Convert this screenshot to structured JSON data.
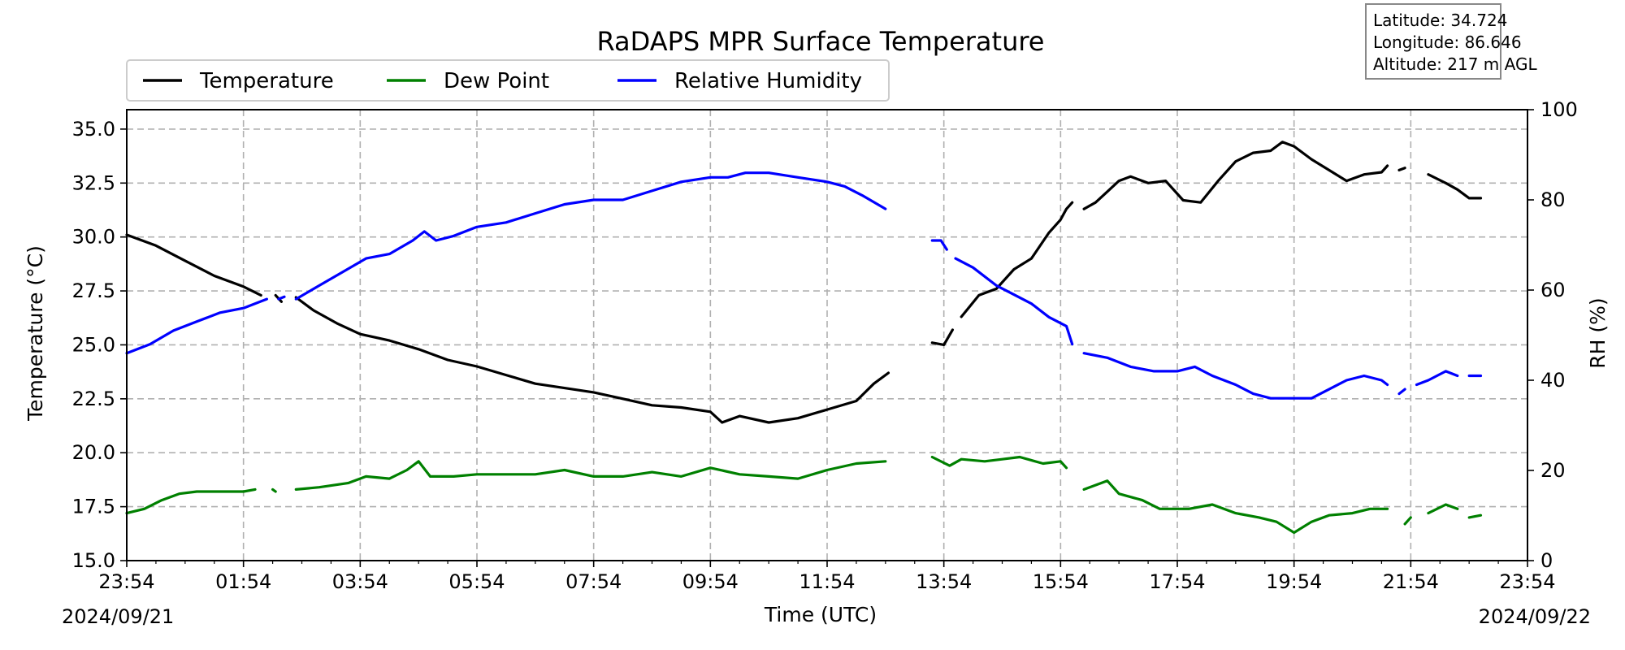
{
  "info": {
    "latitude": "Latitude: 34.724",
    "longitude": "Longitude: 86.646",
    "altitude": "Altitude: 217 m AGL"
  },
  "chart_data": {
    "type": "line",
    "title": "RaDAPS MPR Surface Temperature",
    "xlabel": "Time (UTC)",
    "ylabel": "Temperature (°C)",
    "y2label": "RH (%)",
    "date_start": "2024/09/21",
    "date_end": "2024/09/22",
    "xticks": [
      "23:54",
      "01:54",
      "03:54",
      "05:54",
      "07:54",
      "09:54",
      "11:54",
      "13:54",
      "15:54",
      "17:54",
      "19:54",
      "21:54",
      "23:54"
    ],
    "xlim_hours": [
      0,
      24
    ],
    "ylim": [
      15,
      35.9
    ],
    "yticks": [
      "15.0",
      "17.5",
      "20.0",
      "22.5",
      "25.0",
      "27.5",
      "30.0",
      "32.5",
      "35.0"
    ],
    "y2lim": [
      0,
      100
    ],
    "y2ticks": [
      "0",
      "20",
      "40",
      "60",
      "80",
      "100"
    ],
    "grid": true,
    "legend_position": "top-left",
    "series": [
      {
        "name": "Temperature",
        "axis": "left",
        "color": "#000000",
        "points": [
          [
            0,
            30.1
          ],
          [
            0.5,
            29.6
          ],
          [
            1,
            28.9
          ],
          [
            1.5,
            28.2
          ],
          [
            2,
            27.7
          ],
          [
            2.3,
            27.3
          ],
          null,
          [
            2.55,
            27.3
          ],
          [
            2.65,
            27.0
          ],
          null,
          [
            2.9,
            27.2
          ],
          [
            3.2,
            26.6
          ],
          [
            3.6,
            26.0
          ],
          [
            4,
            25.5
          ],
          [
            4.5,
            25.2
          ],
          [
            5,
            24.8
          ],
          [
            5.5,
            24.3
          ],
          [
            6,
            24.0
          ],
          [
            6.5,
            23.6
          ],
          [
            7,
            23.2
          ],
          [
            7.5,
            23.0
          ],
          [
            8,
            22.8
          ],
          [
            8.5,
            22.5
          ],
          [
            9,
            22.2
          ],
          [
            9.5,
            22.1
          ],
          [
            10,
            21.9
          ],
          [
            10.2,
            21.4
          ],
          [
            10.5,
            21.7
          ],
          [
            11,
            21.4
          ],
          [
            11.5,
            21.6
          ],
          [
            12,
            22.0
          ],
          [
            12.5,
            22.4
          ],
          [
            12.8,
            23.2
          ],
          [
            13.05,
            23.7
          ],
          null,
          [
            13.8,
            25.1
          ],
          [
            14.0,
            25.0
          ],
          [
            14.15,
            25.7
          ],
          null,
          [
            14.3,
            26.3
          ],
          [
            14.6,
            27.3
          ],
          [
            14.9,
            27.6
          ],
          [
            15.2,
            28.5
          ],
          [
            15.5,
            29.0
          ],
          [
            15.8,
            30.2
          ],
          [
            16.0,
            30.8
          ],
          [
            16.1,
            31.3
          ],
          [
            16.2,
            31.6
          ],
          null,
          [
            16.4,
            31.3
          ],
          [
            16.6,
            31.6
          ],
          [
            16.8,
            32.1
          ],
          [
            17,
            32.6
          ],
          [
            17.2,
            32.8
          ],
          [
            17.5,
            32.5
          ],
          [
            17.8,
            32.6
          ],
          [
            18.1,
            31.7
          ],
          [
            18.4,
            31.6
          ],
          [
            18.7,
            32.6
          ],
          [
            19,
            33.5
          ],
          [
            19.3,
            33.9
          ],
          [
            19.6,
            34.0
          ],
          [
            19.8,
            34.4
          ],
          [
            20,
            34.2
          ],
          [
            20.3,
            33.6
          ],
          [
            20.6,
            33.1
          ],
          [
            20.9,
            32.6
          ],
          [
            21.2,
            32.9
          ],
          [
            21.5,
            33.0
          ],
          [
            21.6,
            33.3
          ],
          null,
          [
            21.8,
            33.1
          ],
          [
            21.9,
            33.2
          ],
          null,
          [
            22.3,
            32.9
          ],
          [
            22.6,
            32.5
          ],
          [
            22.8,
            32.2
          ],
          [
            23.0,
            31.8
          ],
          [
            23.2,
            31.8
          ]
        ]
      },
      {
        "name": "Dew Point",
        "axis": "left",
        "color": "#008000",
        "points": [
          [
            0,
            17.2
          ],
          [
            0.3,
            17.4
          ],
          [
            0.6,
            17.8
          ],
          [
            0.9,
            18.1
          ],
          [
            1.2,
            18.2
          ],
          [
            1.6,
            18.2
          ],
          [
            2,
            18.2
          ],
          [
            2.2,
            18.3
          ],
          null,
          [
            2.5,
            18.3
          ],
          [
            2.55,
            18.2
          ],
          null,
          [
            2.9,
            18.3
          ],
          [
            3.3,
            18.4
          ],
          [
            3.8,
            18.6
          ],
          [
            4.1,
            18.9
          ],
          [
            4.5,
            18.8
          ],
          [
            4.8,
            19.2
          ],
          [
            5.0,
            19.6
          ],
          [
            5.2,
            18.9
          ],
          [
            5.6,
            18.9
          ],
          [
            6.0,
            19.0
          ],
          [
            6.5,
            19.0
          ],
          [
            7.0,
            19.0
          ],
          [
            7.5,
            19.2
          ],
          [
            8.0,
            18.9
          ],
          [
            8.5,
            18.9
          ],
          [
            9.0,
            19.1
          ],
          [
            9.5,
            18.9
          ],
          [
            10.0,
            19.3
          ],
          [
            10.5,
            19.0
          ],
          [
            11.0,
            18.9
          ],
          [
            11.5,
            18.8
          ],
          [
            12.0,
            19.2
          ],
          [
            12.5,
            19.5
          ],
          [
            13.0,
            19.6
          ],
          null,
          [
            13.8,
            19.8
          ],
          [
            14.1,
            19.4
          ],
          [
            14.3,
            19.7
          ],
          [
            14.7,
            19.6
          ],
          [
            15.0,
            19.7
          ],
          [
            15.3,
            19.8
          ],
          [
            15.7,
            19.5
          ],
          [
            16.0,
            19.6
          ],
          [
            16.1,
            19.3
          ],
          null,
          [
            16.4,
            18.3
          ],
          [
            16.8,
            18.7
          ],
          [
            17.0,
            18.1
          ],
          [
            17.4,
            17.8
          ],
          [
            17.7,
            17.4
          ],
          [
            18.2,
            17.4
          ],
          [
            18.6,
            17.6
          ],
          [
            19.0,
            17.2
          ],
          [
            19.4,
            17.0
          ],
          [
            19.7,
            16.8
          ],
          [
            20.0,
            16.3
          ],
          [
            20.3,
            16.8
          ],
          [
            20.6,
            17.1
          ],
          [
            21.0,
            17.2
          ],
          [
            21.3,
            17.4
          ],
          [
            21.6,
            17.4
          ],
          null,
          [
            21.9,
            16.7
          ],
          [
            22.0,
            17.0
          ],
          null,
          [
            22.3,
            17.2
          ],
          [
            22.6,
            17.6
          ],
          [
            22.8,
            17.4
          ],
          null,
          [
            23.0,
            17.0
          ],
          [
            23.2,
            17.1
          ]
        ]
      },
      {
        "name": "Relative Humidity",
        "axis": "right",
        "color": "#0000ff",
        "points": [
          [
            0,
            46
          ],
          [
            0.4,
            48
          ],
          [
            0.8,
            51
          ],
          [
            1.2,
            53
          ],
          [
            1.6,
            55
          ],
          [
            2,
            56
          ],
          [
            2.3,
            57.5
          ],
          [
            2.4,
            58
          ],
          null,
          [
            2.6,
            58
          ],
          [
            2.7,
            58.5
          ],
          null,
          [
            2.9,
            58
          ],
          [
            3.3,
            61
          ],
          [
            3.7,
            64
          ],
          [
            4.1,
            67
          ],
          [
            4.5,
            68
          ],
          [
            4.9,
            71
          ],
          [
            5.1,
            73
          ],
          [
            5.3,
            71
          ],
          [
            5.6,
            72
          ],
          [
            6.0,
            74
          ],
          [
            6.5,
            75
          ],
          [
            7.0,
            77
          ],
          [
            7.5,
            79
          ],
          [
            8.0,
            80
          ],
          [
            8.5,
            80
          ],
          [
            9.0,
            82
          ],
          [
            9.5,
            84
          ],
          [
            10.0,
            85
          ],
          [
            10.3,
            85
          ],
          [
            10.6,
            86
          ],
          [
            11.0,
            86
          ],
          [
            11.5,
            85
          ],
          [
            12.0,
            84
          ],
          [
            12.3,
            83
          ],
          [
            12.6,
            81
          ],
          [
            13.0,
            78
          ],
          null,
          [
            13.8,
            71
          ],
          [
            13.95,
            71
          ],
          [
            14.05,
            69
          ],
          null,
          [
            14.2,
            67
          ],
          [
            14.5,
            65
          ],
          [
            14.9,
            61
          ],
          [
            15.2,
            59
          ],
          [
            15.5,
            57
          ],
          [
            15.8,
            54
          ],
          [
            16.1,
            52
          ],
          [
            16.2,
            48
          ],
          null,
          [
            16.4,
            46
          ],
          [
            16.8,
            45
          ],
          [
            17.2,
            43
          ],
          [
            17.6,
            42
          ],
          [
            18.0,
            42
          ],
          [
            18.3,
            43
          ],
          [
            18.6,
            41
          ],
          [
            19.0,
            39
          ],
          [
            19.3,
            37
          ],
          [
            19.6,
            36
          ],
          [
            20.0,
            36
          ],
          [
            20.3,
            36
          ],
          [
            20.6,
            38
          ],
          [
            20.9,
            40
          ],
          [
            21.2,
            41
          ],
          [
            21.5,
            40
          ],
          [
            21.6,
            39
          ],
          null,
          [
            21.8,
            37
          ],
          [
            21.9,
            38
          ],
          null,
          [
            22.1,
            39
          ],
          [
            22.3,
            40
          ],
          [
            22.6,
            42
          ],
          [
            22.8,
            41
          ],
          null,
          [
            23.0,
            41
          ],
          [
            23.2,
            41
          ]
        ]
      }
    ]
  }
}
